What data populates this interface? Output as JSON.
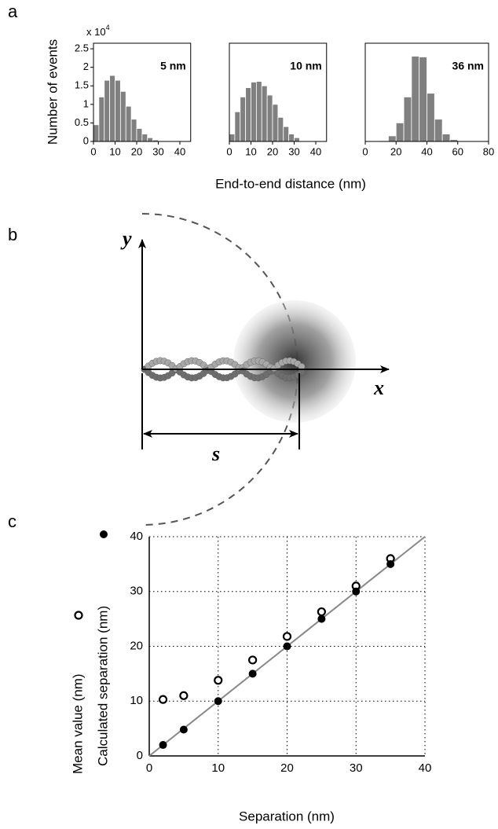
{
  "chart_data": [
    {
      "type": "histogram",
      "panel": "a",
      "ylabel": "Number of events",
      "y_multiplier": "x 10",
      "y_multiplier_exponent": "4",
      "xlabel": "End-to-end distance (nm)",
      "annotation": "5 nm",
      "bins": [
        0,
        2.5,
        5,
        7.5,
        10,
        12.5,
        15,
        17.5,
        20,
        22.5,
        25,
        27.5,
        30
      ],
      "values": [
        0.45,
        1.2,
        1.65,
        1.78,
        1.65,
        1.35,
        0.95,
        0.6,
        0.35,
        0.2,
        0.1,
        0.04
      ],
      "color": "#808080",
      "xlim": [
        0,
        45
      ],
      "xticks": [
        0,
        10,
        20,
        30,
        40
      ],
      "ylim": [
        0,
        2.65
      ],
      "yticks": [
        0,
        0.5,
        1,
        1.5,
        2,
        2.5
      ]
    },
    {
      "type": "histogram",
      "annotation": "10 nm",
      "bins": [
        0,
        2.5,
        5,
        7.5,
        10,
        12.5,
        15,
        17.5,
        20,
        22.5,
        25,
        27.5,
        30,
        32.5
      ],
      "values": [
        0.2,
        0.8,
        1.2,
        1.45,
        1.6,
        1.62,
        1.5,
        1.25,
        1.0,
        0.65,
        0.4,
        0.2,
        0.1
      ],
      "color": "#808080",
      "xlim": [
        0,
        45
      ],
      "xticks": [
        0,
        10,
        20,
        30,
        40
      ],
      "ylim": [
        0,
        2.65
      ]
    },
    {
      "type": "histogram",
      "annotation": "36 nm",
      "bins": [
        10,
        15,
        20,
        25,
        30,
        35,
        40,
        45,
        50,
        55,
        60
      ],
      "values": [
        0.02,
        0.15,
        0.5,
        1.2,
        2.3,
        2.28,
        1.3,
        0.6,
        0.2,
        0.05
      ],
      "color": "#808080",
      "xlim": [
        0,
        80
      ],
      "xticks": [
        0,
        20,
        40,
        60,
        80
      ],
      "ylim": [
        0,
        2.65
      ]
    },
    {
      "type": "scatter",
      "panel": "c",
      "xlabel": "Separation (nm)",
      "x": [
        2,
        5,
        10,
        15,
        20,
        25,
        30,
        35
      ],
      "series": [
        {
          "name": "Mean value (nm)",
          "color": "#000000",
          "marker": "open",
          "values": [
            10.3,
            11,
            13.8,
            17.5,
            21.8,
            26.3,
            31,
            36
          ]
        },
        {
          "name": "Calculated separation (nm)",
          "color": "#000000",
          "marker": "filled",
          "values": [
            2,
            4.8,
            10,
            15,
            20,
            25,
            30,
            35
          ]
        }
      ],
      "xlim": [
        0,
        40
      ],
      "ylim": [
        0,
        40
      ],
      "xticks": [
        0,
        10,
        20,
        30,
        40
      ],
      "yticks": [
        0,
        10,
        20,
        30,
        40
      ],
      "grid": true,
      "identity_line": true
    }
  ],
  "diagram": {
    "panel": "b",
    "y_axis": "y",
    "x_axis": "x",
    "distance": "s"
  }
}
